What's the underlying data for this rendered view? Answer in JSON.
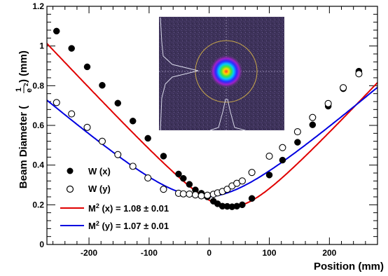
{
  "chart_data": {
    "type": "scatter",
    "xlabel": "Position (mm)",
    "ylabel_main": "Beam Diameter (",
    "ylabel_num": "1",
    "ylabel_den": "e",
    "ylabel_exp": "2",
    "ylabel_close": ") (mm)",
    "xlim": [
      -270,
      280
    ],
    "ylim": [
      0,
      1.2
    ],
    "xticks": [
      -200,
      -100,
      0,
      100,
      200
    ],
    "xtick_labels": [
      "-200",
      "-100",
      "0",
      "100",
      "200"
    ],
    "yticks": [
      0,
      0.2,
      0.4,
      0.6,
      0.8,
      1.0,
      1.2
    ],
    "ytick_labels": [
      "0",
      "0.2",
      "0.4",
      "0.6",
      "0.8",
      "1",
      "1.2"
    ],
    "legend_position": "bottom-left",
    "series": [
      {
        "name": "W (x)",
        "marker": "filled-circle",
        "color": "#000000",
        "points": [
          [
            -254,
            1.075
          ],
          [
            -229,
            0.988
          ],
          [
            -203,
            0.895
          ],
          [
            -178,
            0.802
          ],
          [
            -152,
            0.712
          ],
          [
            -127,
            0.622
          ],
          [
            -102,
            0.535
          ],
          [
            -76,
            0.445
          ],
          [
            -51,
            0.355
          ],
          [
            -43,
            0.333
          ],
          [
            -33,
            0.303
          ],
          [
            -23,
            0.275
          ],
          [
            -13,
            0.258
          ],
          [
            -3,
            0.24
          ],
          [
            7,
            0.218
          ],
          [
            14,
            0.205
          ],
          [
            22,
            0.193
          ],
          [
            30,
            0.192
          ],
          [
            38,
            0.19
          ],
          [
            46,
            0.193
          ],
          [
            55,
            0.2
          ],
          [
            71,
            0.232
          ],
          [
            100,
            0.35
          ],
          [
            122,
            0.425
          ],
          [
            147,
            0.515
          ],
          [
            172,
            0.603
          ],
          [
            198,
            0.697
          ],
          [
            223,
            0.785
          ],
          [
            249,
            0.873
          ]
        ]
      },
      {
        "name": "W (y)",
        "marker": "open-circle",
        "color": "#000000",
        "points": [
          [
            -254,
            0.715
          ],
          [
            -229,
            0.658
          ],
          [
            -203,
            0.59
          ],
          [
            -178,
            0.52
          ],
          [
            -152,
            0.453
          ],
          [
            -127,
            0.394
          ],
          [
            -102,
            0.335
          ],
          [
            -76,
            0.278
          ],
          [
            -51,
            0.258
          ],
          [
            -43,
            0.255
          ],
          [
            -33,
            0.254
          ],
          [
            -23,
            0.25
          ],
          [
            -13,
            0.245
          ],
          [
            -3,
            0.248
          ],
          [
            7,
            0.253
          ],
          [
            14,
            0.26
          ],
          [
            22,
            0.267
          ],
          [
            30,
            0.278
          ],
          [
            38,
            0.295
          ],
          [
            46,
            0.308
          ],
          [
            55,
            0.32
          ],
          [
            71,
            0.363
          ],
          [
            100,
            0.445
          ],
          [
            122,
            0.488
          ],
          [
            147,
            0.568
          ],
          [
            172,
            0.64
          ],
          [
            198,
            0.71
          ],
          [
            223,
            0.79
          ],
          [
            249,
            0.86
          ]
        ]
      },
      {
        "name": "M² (x) = 1.08 ± 0.01",
        "legend_label": "M",
        "legend_sup": "2",
        "legend_rest": " (x) = 1.08 ± 0.01",
        "type": "fit-line",
        "color": "#e00000",
        "fit": {
          "w0": 0.19,
          "z0": 36,
          "slope": 0.00325
        }
      },
      {
        "name": "M² (y) = 1.07 ± 0.01",
        "legend_label": "M",
        "legend_sup": "2",
        "legend_rest": " (y) = 1.07 ± 0.01",
        "type": "fit-line",
        "color": "#0000e0",
        "fit": {
          "w0": 0.24,
          "z0": -8,
          "slope": 0.00262
        }
      }
    ],
    "inset": {
      "type": "beam-profile-image"
    }
  }
}
